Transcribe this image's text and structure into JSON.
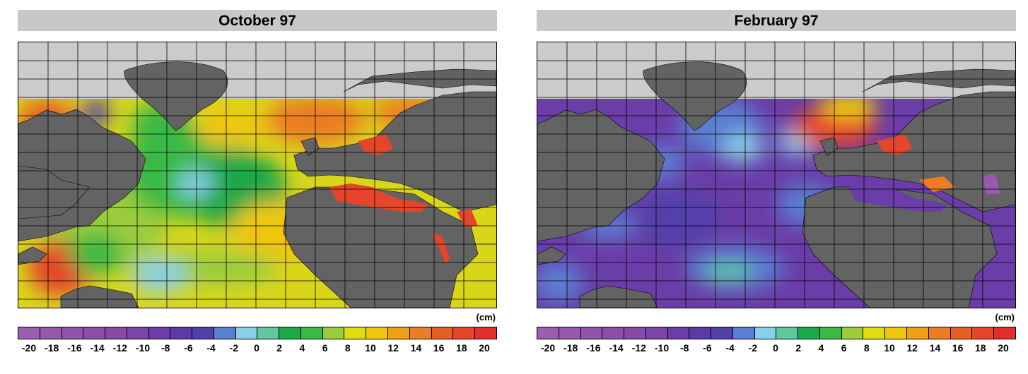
{
  "colors": {
    "land": "#636363",
    "no_data": "#cbcbcb",
    "grid": "#000000",
    "title_bar": "#c8c8c8",
    "scale": [
      "#9a5fae",
      "#9659ad",
      "#9154ab",
      "#8c4ea9",
      "#874aa8",
      "#7d45a8",
      "#6a3da8",
      "#5b3aa8",
      "#5240a9",
      "#5a7ed2",
      "#88cfe8",
      "#5fc69e",
      "#1aa84a",
      "#3ab944",
      "#9bcc3e",
      "#e0dc12",
      "#eec70f",
      "#efa218",
      "#ec7d23",
      "#e85f26",
      "#e5452a",
      "#e12f2b"
    ]
  },
  "colorbar": {
    "unit": "(cm)",
    "tick_labels": [
      "-20",
      "-18",
      "-16",
      "-14",
      "-12",
      "-10",
      "-8",
      "-6",
      "-4",
      "-2",
      "0",
      "2",
      "4",
      "6",
      "8",
      "10",
      "12",
      "14",
      "16",
      "18",
      "20"
    ]
  },
  "panels": [
    {
      "id": "october-97",
      "title": "October 97"
    },
    {
      "id": "february-97",
      "title": "February 97"
    }
  ]
}
